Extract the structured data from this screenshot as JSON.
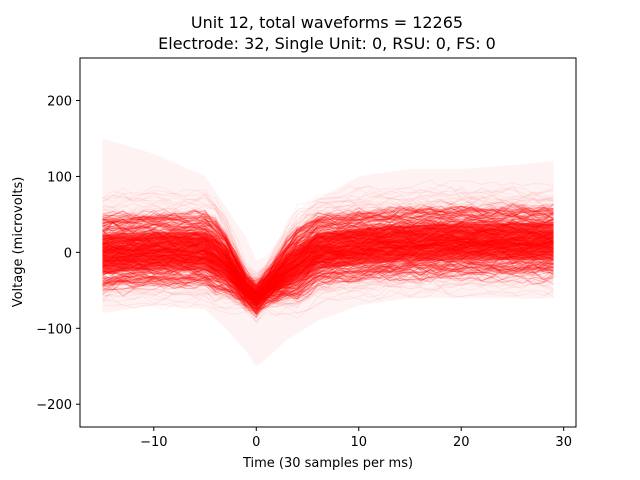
{
  "chart_data": {
    "type": "line",
    "title_line1": "Unit 12, total waveforms = 12265",
    "title_line2": "Electrode: 32, Single Unit: 0, RSU: 0, FS: 0",
    "xlabel": "Time (30 samples per ms)",
    "ylabel": "Voltage (microvolts)",
    "xlim": [
      -17.2,
      31.2
    ],
    "ylim": [
      -230,
      256
    ],
    "xticks": [
      -10,
      0,
      10,
      20,
      30
    ],
    "yticks": [
      -200,
      -100,
      0,
      100,
      200
    ],
    "grid": false,
    "line_color": "#ff0000",
    "total_waveforms": 12265,
    "x_start": -15,
    "x_end": 29,
    "mean_waveform": {
      "x": [
        -15,
        -10,
        -5,
        -3,
        -2,
        -1,
        0,
        1,
        3,
        6,
        10,
        15,
        20,
        25,
        29
      ],
      "y": [
        -2,
        2,
        2,
        -15,
        -32,
        -50,
        -60,
        -48,
        -25,
        2,
        8,
        12,
        14,
        14,
        14
      ]
    },
    "envelope": {
      "x": [
        -15,
        -10,
        -5,
        -3,
        -1,
        0,
        1,
        3,
        6,
        10,
        15,
        20,
        25,
        29
      ],
      "upper": [
        150,
        130,
        100,
        60,
        20,
        -10,
        -5,
        30,
        70,
        100,
        110,
        110,
        115,
        120
      ],
      "lower": [
        -80,
        -70,
        -75,
        -100,
        -130,
        -150,
        -140,
        -115,
        -90,
        -70,
        -60,
        -60,
        -60,
        -60
      ]
    }
  }
}
